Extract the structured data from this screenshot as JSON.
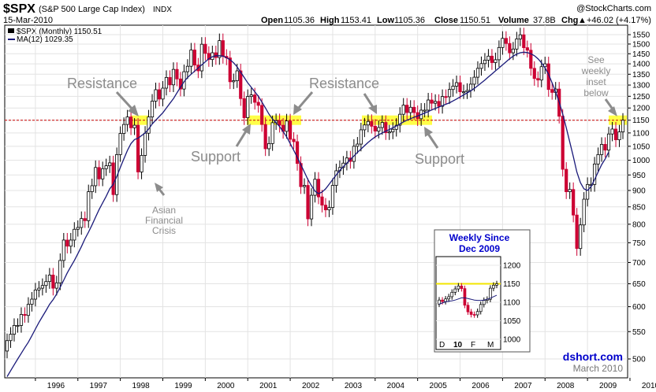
{
  "header": {
    "symbol": "$SPX",
    "name": "(S&P 500 Large Cap Index)",
    "exchange": "INDX",
    "watermark": "@StockCharts.com",
    "date": "15-Mar-2010",
    "open_label": "Open",
    "open": "1105.36",
    "high_label": "High",
    "high": "1153.41",
    "low_label": "Low",
    "low": "1105.36",
    "close_label": "Close",
    "close": "1150.51",
    "volume_label": "Volume",
    "volume": "37.8B",
    "chg_label": "Chg",
    "chg": "+46.02 (+4.17%)",
    "chg_arrow": "▲"
  },
  "legend": {
    "price_label": "$SPX (Monthly) 1150.51",
    "ma_label": "MA(12) 1029.35"
  },
  "colors": {
    "up": "#ffffff",
    "down": "#cc0033",
    "ma": "#1a1a7a",
    "highlight": "#ffff33",
    "resistance_line": "#cc0000",
    "annotation": "#8c8c8c",
    "inset_title": "#0000cc",
    "credit": "#0000cc"
  },
  "annotations": {
    "resistance_1": "Resistance",
    "resistance_2": "Resistance",
    "support_1": "Support",
    "support_2": "Support",
    "crisis_1": "Asian",
    "crisis_2": "Financial",
    "crisis_3": "Crisis",
    "inset_note_1": "See",
    "inset_note_2": "weekly",
    "inset_note_3": "inset",
    "inset_note_4": "below"
  },
  "inset": {
    "title_1": "Weekly Since",
    "title_2": "Dec 2009",
    "y_ticks": [
      "1200",
      "1150",
      "1100",
      "1050",
      "1000"
    ],
    "x_ticks": [
      "D",
      "10",
      "F",
      "M"
    ]
  },
  "credit": {
    "site": "dshort.com",
    "date": "March 2010"
  },
  "chart_data": {
    "type": "candlestick",
    "title": "$SPX (S&P 500 Large Cap Index)",
    "xlabel": "",
    "ylabel": "",
    "y_scale": "log",
    "ylim": [
      480,
      1600
    ],
    "y_ticks": [
      500,
      550,
      600,
      650,
      700,
      750,
      800,
      850,
      900,
      950,
      1000,
      1050,
      1100,
      1150,
      1200,
      1250,
      1300,
      1350,
      1400,
      1450,
      1500,
      1550
    ],
    "x_ticks": [
      "1996",
      "1997",
      "1998",
      "1999",
      "2000",
      "2001",
      "2002",
      "2003",
      "2004",
      "2005",
      "2006",
      "2007",
      "2008",
      "2009",
      "2010"
    ],
    "resistance_level": 1150,
    "series": [
      {
        "name": "$SPX (Monthly)",
        "x_start": "1995-05",
        "x_end": "2010-03",
        "close": [
          533,
          545,
          562,
          562,
          584,
          582,
          605,
          616,
          636,
          640,
          646,
          655,
          670,
          640,
          652,
          705,
          757,
          741,
          757,
          786,
          791,
          816,
          810,
          896,
          915,
          975,
          937,
          971,
          981,
          991,
          887,
          1020,
          1098,
          1133,
          1163,
          1120,
          1130,
          960,
          1017,
          1099,
          1163,
          1229,
          1279,
          1238,
          1286,
          1335,
          1301,
          1373,
          1328,
          1282,
          1362,
          1388,
          1469,
          1394,
          1366,
          1499,
          1452,
          1421,
          1455,
          1431,
          1518,
          1437,
          1429,
          1315,
          1320,
          1366,
          1240,
          1160,
          1249,
          1256,
          1224,
          1211,
          1133,
          1041,
          1060,
          1140,
          1148,
          1130,
          1106,
          1147,
          1076,
          1067,
          989,
          912,
          916,
          815,
          885,
          936,
          880,
          855,
          841,
          848,
          916,
          964,
          975,
          990,
          1008,
          996,
          1050,
          1058,
          1112,
          1131,
          1145,
          1126,
          1107,
          1121,
          1141,
          1101,
          1104,
          1114,
          1130,
          1174,
          1212,
          1181,
          1203,
          1181,
          1156,
          1191,
          1191,
          1234,
          1220,
          1228,
          1207,
          1249,
          1248,
          1280,
          1295,
          1311,
          1270,
          1270,
          1276,
          1304,
          1336,
          1378,
          1401,
          1418,
          1438,
          1406,
          1420,
          1482,
          1530,
          1503,
          1455,
          1474,
          1527,
          1549,
          1481,
          1468,
          1378,
          1330,
          1323,
          1386,
          1400,
          1280,
          1267,
          1282,
          1166,
          969,
          896,
          903,
          826,
          735,
          798,
          873,
          919,
          919,
          987,
          1020,
          1057,
          1036,
          1096,
          1115,
          1074,
          1104,
          1150
        ],
        "open": [
          514,
          533,
          545,
          562,
          562,
          584,
          582,
          605,
          616,
          636,
          640,
          646,
          655,
          670,
          640,
          652,
          705,
          757,
          741,
          757,
          786,
          791,
          816,
          810,
          896,
          915,
          975,
          937,
          971,
          981,
          991,
          887,
          1020,
          1098,
          1133,
          1163,
          1120,
          1130,
          960,
          1017,
          1099,
          1163,
          1229,
          1279,
          1238,
          1286,
          1335,
          1301,
          1373,
          1328,
          1282,
          1362,
          1388,
          1469,
          1394,
          1366,
          1499,
          1452,
          1421,
          1455,
          1431,
          1518,
          1437,
          1429,
          1315,
          1320,
          1366,
          1240,
          1160,
          1249,
          1256,
          1224,
          1211,
          1133,
          1041,
          1060,
          1140,
          1148,
          1130,
          1106,
          1147,
          1076,
          1067,
          989,
          912,
          916,
          815,
          885,
          936,
          880,
          855,
          841,
          848,
          916,
          964,
          975,
          990,
          1008,
          996,
          1050,
          1058,
          1112,
          1131,
          1145,
          1126,
          1107,
          1121,
          1141,
          1101,
          1104,
          1114,
          1130,
          1174,
          1212,
          1181,
          1203,
          1181,
          1156,
          1191,
          1191,
          1234,
          1220,
          1228,
          1207,
          1249,
          1248,
          1280,
          1295,
          1311,
          1270,
          1270,
          1276,
          1304,
          1336,
          1378,
          1401,
          1418,
          1438,
          1406,
          1420,
          1482,
          1530,
          1503,
          1455,
          1474,
          1527,
          1549,
          1481,
          1468,
          1378,
          1330,
          1323,
          1386,
          1400,
          1280,
          1267,
          1282,
          1166,
          969,
          896,
          903,
          826,
          735,
          798,
          873,
          919,
          919,
          987,
          1020,
          1057,
          1036,
          1096,
          1115,
          1074,
          1104
        ]
      },
      {
        "name": "MA(12)",
        "x_start": "1995-05",
        "x_end": "2010-03",
        "values": [
          470,
          480,
          490,
          500,
          510,
          520,
          530,
          542,
          555,
          568,
          580,
          592,
          605,
          615,
          627,
          642,
          658,
          675,
          690,
          705,
          722,
          740,
          760,
          778,
          798,
          820,
          842,
          862,
          882,
          905,
          920,
          945,
          975,
          1005,
          1035,
          1060,
          1075,
          1080,
          1090,
          1100,
          1115,
          1135,
          1150,
          1165,
          1180,
          1200,
          1220,
          1240,
          1265,
          1290,
          1315,
          1335,
          1350,
          1365,
          1380,
          1395,
          1410,
          1425,
          1435,
          1440,
          1440,
          1438,
          1430,
          1420,
          1405,
          1385,
          1360,
          1335,
          1310,
          1290,
          1270,
          1250,
          1225,
          1200,
          1175,
          1155,
          1140,
          1125,
          1105,
          1085,
          1060,
          1035,
          1010,
          985,
          960,
          935,
          915,
          898,
          890,
          895,
          905,
          920,
          935,
          950,
          965,
          978,
          990,
          1003,
          1015,
          1028,
          1040,
          1052,
          1064,
          1075,
          1085,
          1093,
          1100,
          1107,
          1113,
          1120,
          1127,
          1135,
          1143,
          1150,
          1156,
          1162,
          1167,
          1173,
          1179,
          1185,
          1192,
          1198,
          1204,
          1210,
          1216,
          1222,
          1230,
          1238,
          1247,
          1256,
          1265,
          1274,
          1285,
          1297,
          1310,
          1323,
          1337,
          1351,
          1366,
          1380,
          1395,
          1410,
          1425,
          1438,
          1448,
          1455,
          1458,
          1456,
          1450,
          1440,
          1425,
          1405,
          1380,
          1350,
          1310,
          1270,
          1225,
          1175,
          1120,
          1065,
          1012,
          960,
          925,
          905,
          900,
          912,
          935,
          960,
          985,
          1005,
          1029
        ]
      }
    ],
    "inset_chart": {
      "type": "candlestick",
      "title": "Weekly Since Dec 2009",
      "ylim": [
        1000,
        1200
      ],
      "y_ticks": [
        1000,
        1050,
        1100,
        1150,
        1200
      ],
      "x_ticks": [
        "D",
        "10",
        "F",
        "M"
      ],
      "resistance_level": 1150,
      "close": [
        1106,
        1102,
        1109,
        1115,
        1127,
        1136,
        1144,
        1137,
        1092,
        1074,
        1067,
        1066,
        1075,
        1094,
        1105,
        1108,
        1138,
        1146,
        1150
      ],
      "open": [
        1095,
        1106,
        1102,
        1109,
        1115,
        1127,
        1136,
        1144,
        1137,
        1092,
        1074,
        1067,
        1066,
        1075,
        1094,
        1105,
        1108,
        1138,
        1146
      ],
      "ma": [
        1095,
        1098,
        1101,
        1103,
        1104,
        1106,
        1109,
        1112,
        1112,
        1110,
        1108,
        1106,
        1105,
        1105,
        1106,
        1108,
        1111,
        1115,
        1119
      ]
    }
  }
}
